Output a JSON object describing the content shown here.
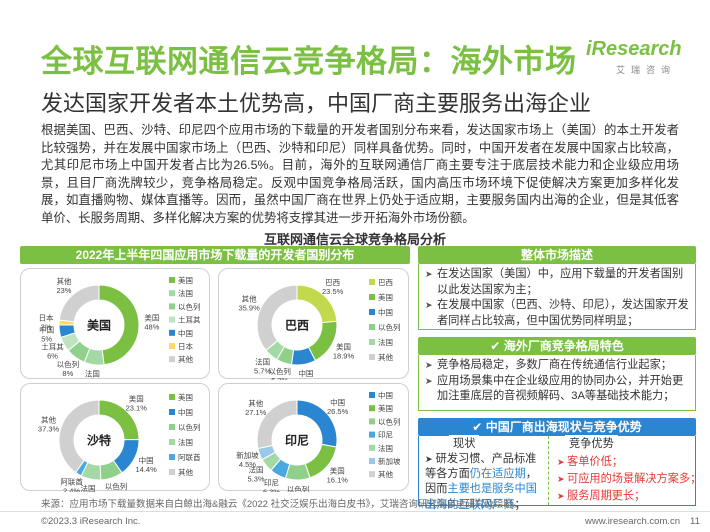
{
  "page": {
    "title": "全球互联网通信云竞争格局：海外市场",
    "subtitle": "发达国家开发者本土优势高，中国厂商主要服务出海企业",
    "logo_brand": "iResearch",
    "logo_cn": "艾瑞咨询",
    "intro": "根据美国、巴西、沙特、印尼四个应用市场的下载量的开发者国别分布来看，发达国家市场上（美国）的本土开发者比较强势，并在发展中国家市场上（巴西、沙特和印尼）同样具备优势。同时，中国开发者在发展中国家占比较高，尤其印尼市场上中国开发者占比为26.5%。目前，海外的互联网通信厂商主要专注于底层技术能力和企业级应用场景，且目厂商洗牌较少，竞争格局稳定。反观中国竞争格局活跃，国内高压市场环境下促使解决方案更加多样化发展，如直播购物、媒体直播等。因而，虽然中国厂商在世界上仍处于适应期，主要服务国内出海的企业，但是其低客单价、长服务周期、多样化解决方案的优势将支撑其进一步开拓海外市场份额。",
    "analysis_title": "互联网通信云全球竞争格局分析",
    "left_header": "2022年上半年四国应用市场下载量的开发者国别分布",
    "source": "来源：应用市场下载量数据来自白鲸出海&融云《2022 社交泛娱乐出海白皮书》，艾瑞咨询研究院自主研究及绘制。",
    "copyright": "©2023.3 iResearch Inc.",
    "website": "www.iresearch.com.cn",
    "page_number": "11"
  },
  "colors": {
    "brand_green": "#7bc043",
    "us": "#7bc043",
    "br": "#c2d94d",
    "others": "#d0d0d0",
    "cn": "#2a86d1",
    "sa": "#4aa7e0",
    "id": "#4aa7e0",
    "uk": "#8fd18a",
    "sg": "#9bc8ea",
    "jp": "#ffd966",
    "tr": "#bfe3c0",
    "fr": "#a3d9a5",
    "blue_header": "#2a86d1",
    "accent_red": "#e53935"
  },
  "chart_data": [
    {
      "type": "pie",
      "title": "美国",
      "slices": [
        {
          "label": "美国",
          "value": 48,
          "color": "#7bc043"
        },
        {
          "label": "法国",
          "value": 8,
          "color": "#a3d9a5"
        },
        {
          "label": "以色列",
          "value": 8,
          "color": "#8fd18a"
        },
        {
          "label": "土耳其",
          "value": 6,
          "color": "#bfe3c0"
        },
        {
          "label": "中国",
          "value": 5,
          "color": "#2a86d1"
        },
        {
          "label": "日本",
          "value": 2,
          "color": "#ffd966"
        },
        {
          "label": "其他",
          "value": 23,
          "color": "#d0d0d0"
        }
      ],
      "legend": [
        "美国",
        "法国",
        "以色列",
        "土耳其",
        "中国",
        "日本",
        "其他"
      ]
    },
    {
      "type": "pie",
      "title": "巴西",
      "slices": [
        {
          "label": "巴西",
          "value": 23.5,
          "color": "#c2d94d"
        },
        {
          "label": "美国",
          "value": 18.9,
          "color": "#7bc043"
        },
        {
          "label": "中国",
          "value": 9.8,
          "color": "#2a86d1"
        },
        {
          "label": "以色列",
          "value": 6.2,
          "color": "#8fd18a"
        },
        {
          "label": "法国",
          "value": 5.7,
          "color": "#a3d9a5"
        },
        {
          "label": "其他",
          "value": 35.9,
          "color": "#d0d0d0"
        }
      ],
      "legend": [
        "巴西",
        "美国",
        "中国",
        "以色列",
        "法国",
        "其他"
      ]
    },
    {
      "type": "pie",
      "title": "沙特",
      "slices": [
        {
          "label": "美国",
          "value": 23.1,
          "color": "#7bc043"
        },
        {
          "label": "中国",
          "value": 14.4,
          "color": "#2a86d1"
        },
        {
          "label": "以色列",
          "value": 8.4,
          "color": "#8fd18a"
        },
        {
          "label": "法国",
          "value": 7.5,
          "color": "#a3d9a5"
        },
        {
          "label": "阿联酋",
          "value": 2.4,
          "color": "#4aa7e0"
        },
        {
          "label": "其他",
          "value": 37.3,
          "color": "#d0d0d0"
        }
      ],
      "legend": [
        "美国",
        "中国",
        "以色列",
        "法国",
        "阿联酋",
        "其他"
      ]
    },
    {
      "type": "pie",
      "title": "印尼",
      "slices": [
        {
          "label": "中国",
          "value": 26.5,
          "color": "#2a86d1"
        },
        {
          "label": "美国",
          "value": 16.1,
          "color": "#7bc043"
        },
        {
          "label": "以色列",
          "value": 9.5,
          "color": "#8fd18a"
        },
        {
          "label": "印尼",
          "value": 6.3,
          "color": "#4aa7e0"
        },
        {
          "label": "法国",
          "value": 5.3,
          "color": "#a3d9a5"
        },
        {
          "label": "新加坡",
          "value": 4.5,
          "color": "#9bc8ea"
        },
        {
          "label": "其他",
          "value": 27.1,
          "color": "#d0d0d0"
        }
      ],
      "legend": [
        "中国",
        "美国",
        "以色列",
        "印尼",
        "法国",
        "新加坡",
        "其他"
      ]
    }
  ],
  "right": {
    "market_header": "整体市场描述",
    "market_items": [
      "在发达国家（美国）中，应用下载量的开发者国别以此发达国家为主；",
      "在发展中国家（巴西、沙特、印尼），发达国家开发者同样占比较高，但中国优势同样明显；"
    ],
    "overseas_header": "海外厂商竞争格局特色",
    "overseas_items": [
      "竞争格局稳定，多数厂商在传统通信行业起家；",
      "应用场景集中在企业级应用的协同办公，并开始更加注重底层的音视频解码、3A等基础技术能力；"
    ],
    "china_header": "中国厂商出海现状与竞争优势",
    "status_tab": "现状",
    "advantage_tab": "竞争优势",
    "status_parts": [
      "研发习惯、产品标准等各方面",
      "仍在适应期",
      "，因而",
      "主要也是服务中国出海的互联网厂商",
      "；"
    ],
    "advantages": [
      "客单价低；",
      "可应用的场景解决方案多；",
      "服务周期更长；"
    ],
    "check_mark": "✔"
  }
}
